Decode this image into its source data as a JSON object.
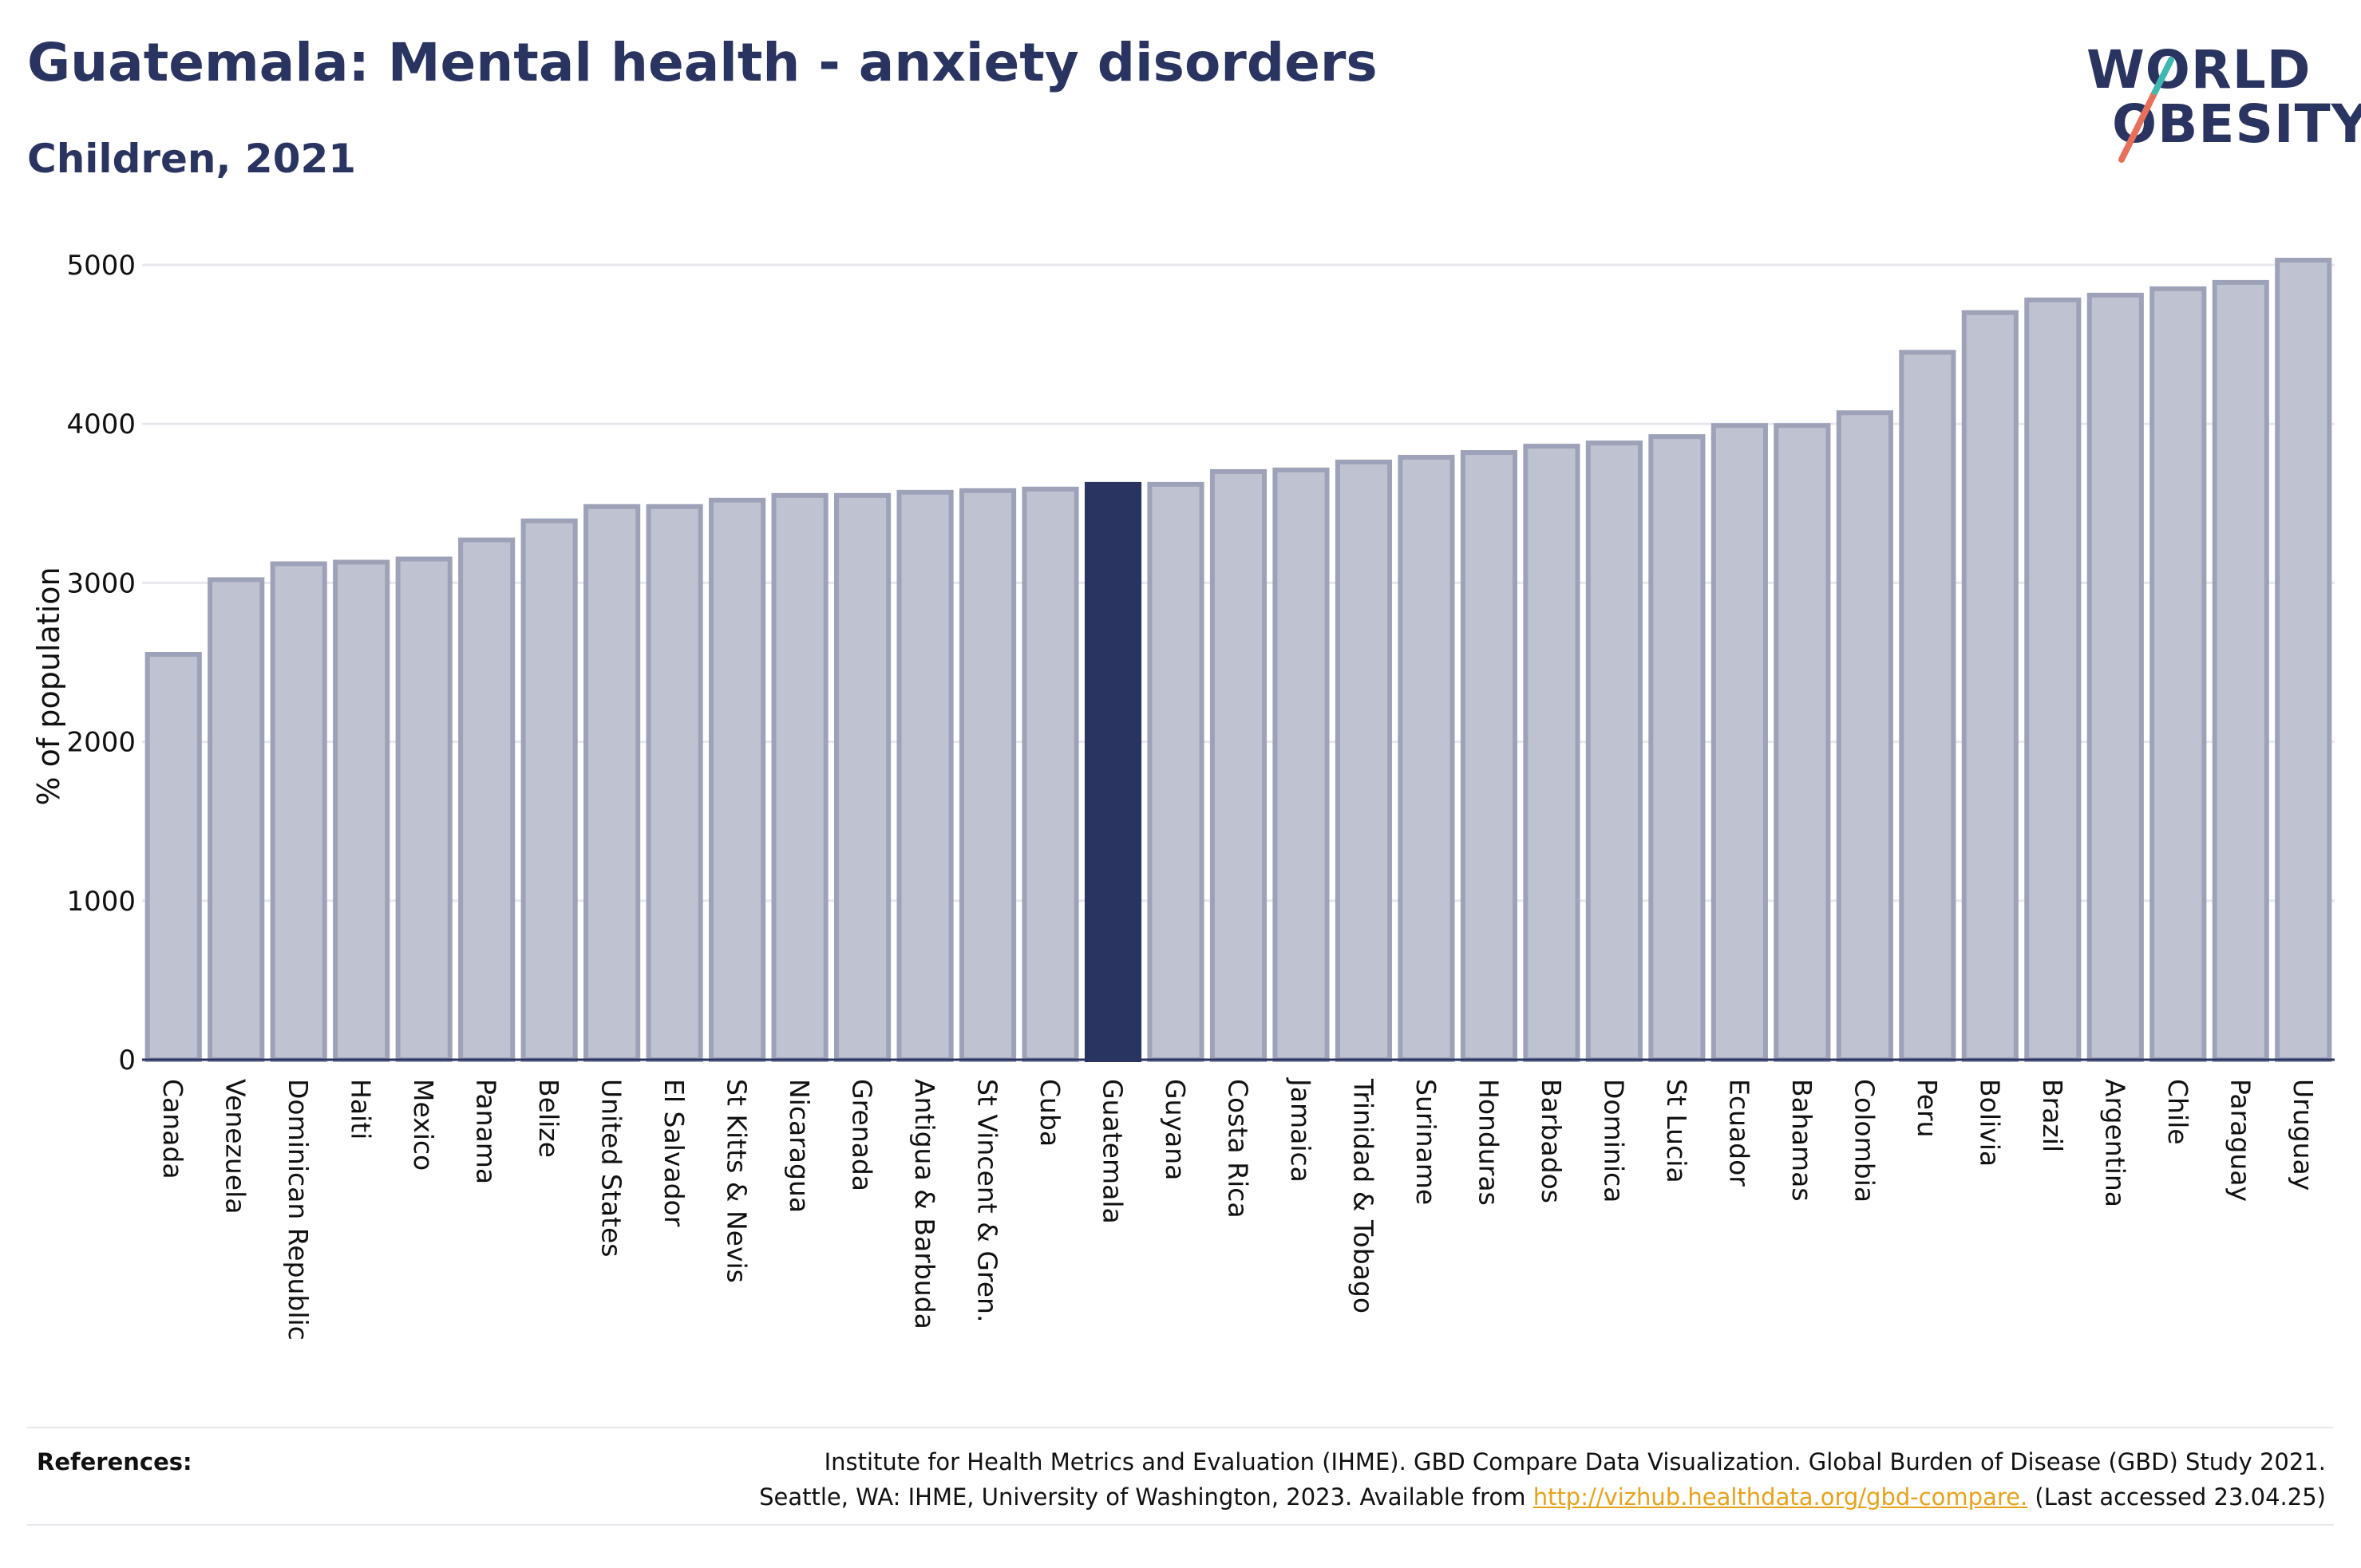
{
  "header": {
    "title": "Guatemala: Mental health - anxiety disorders",
    "subtitle": "Children, 2021"
  },
  "logo": {
    "line1": "WORLD",
    "line2": "OBESITY"
  },
  "colors": {
    "highlight": "#2a3461",
    "bar_fill": "#bfc2d0",
    "bar_stroke": "#9da2b8",
    "slash_red": "#e8705a",
    "slash_teal": "#3fb8b0",
    "link": "#e8a21a"
  },
  "chart_data": {
    "type": "bar",
    "ylabel": "% of population",
    "ylim": [
      0,
      5000
    ],
    "yticks": [
      0,
      1000,
      2000,
      3000,
      4000,
      5000
    ],
    "grid": true,
    "highlight": "Guatemala",
    "categories": [
      "Canada",
      "Venezuela",
      "Dominican Republic",
      "Haiti",
      "Mexico",
      "Panama",
      "Belize",
      "United States",
      "El Salvador",
      "St Kitts & Nevis",
      "Nicaragua",
      "Grenada",
      "Antigua & Barbuda",
      "St Vincent & Gren.",
      "Cuba",
      "Guatemala",
      "Guyana",
      "Costa Rica",
      "Jamaica",
      "Trinidad & Tobago",
      "Suriname",
      "Honduras",
      "Barbados",
      "Dominica",
      "St Lucia",
      "Ecuador",
      "Bahamas",
      "Colombia",
      "Peru",
      "Bolivia",
      "Brazil",
      "Argentina",
      "Chile",
      "Paraguay",
      "Uruguay"
    ],
    "values": [
      2550,
      3020,
      3120,
      3130,
      3150,
      3270,
      3390,
      3480,
      3480,
      3520,
      3550,
      3550,
      3570,
      3580,
      3590,
      3620,
      3620,
      3700,
      3710,
      3760,
      3790,
      3820,
      3860,
      3880,
      3920,
      3990,
      3990,
      4070,
      4450,
      4700,
      4780,
      4810,
      4850,
      4890,
      5030
    ]
  },
  "references": {
    "heading": "References:",
    "line1": "Institute for Health Metrics and Evaluation (IHME). GBD Compare Data Visualization. Global Burden of Disease (GBD) Study 2021.",
    "line2_prefix": "Seattle, WA: IHME, University of Washington, 2023. Available from ",
    "link_text": "http://vizhub.healthdata.org/gbd-compare.",
    "line2_suffix": " (Last accessed 23.04.25)"
  }
}
